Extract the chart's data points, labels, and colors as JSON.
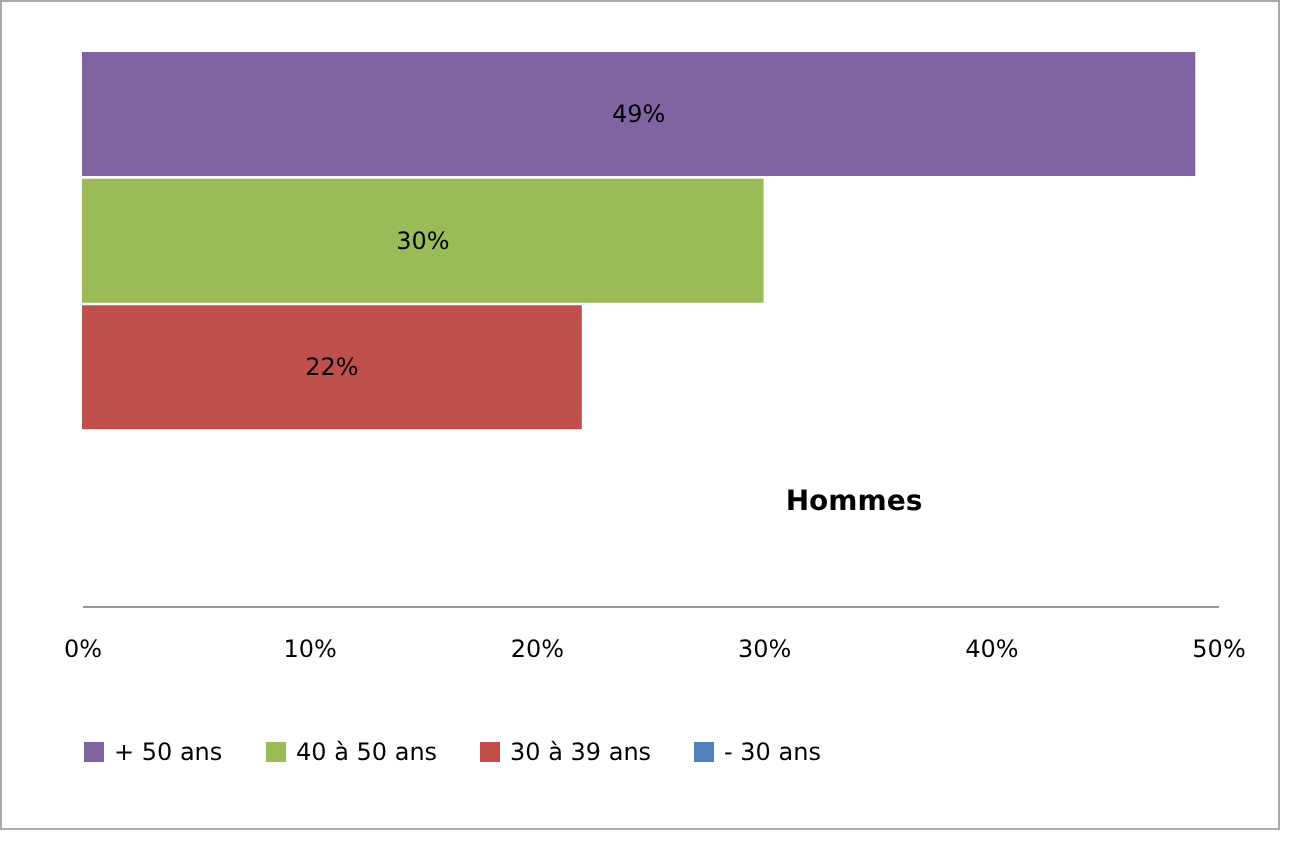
{
  "chart_data": {
    "type": "bar",
    "orientation": "horizontal",
    "categories": [
      null
    ],
    "annotations": [
      "Hommes"
    ],
    "series": [
      {
        "name": "+ 50 ans",
        "color": "#8064a2",
        "values": [
          49
        ],
        "value_labels": [
          "49%"
        ]
      },
      {
        "name": "40 à 50 ans",
        "color": "#9bbb59",
        "values": [
          30
        ],
        "value_labels": [
          "30%"
        ]
      },
      {
        "name": "30 à 39 ans",
        "color": "#c0504d",
        "values": [
          22
        ],
        "value_labels": [
          "22%"
        ]
      },
      {
        "name": "- 30 ans",
        "color": "#4f81bd",
        "values": [
          null
        ],
        "value_labels": [
          null
        ]
      }
    ],
    "xlim": [
      0,
      50
    ],
    "xticks": [
      {
        "value": 0,
        "label": "0%"
      },
      {
        "value": 10,
        "label": "10%"
      },
      {
        "value": 20,
        "label": "20%"
      },
      {
        "value": 30,
        "label": "30%"
      },
      {
        "value": 40,
        "label": "40%"
      },
      {
        "value": 50,
        "label": "50%"
      }
    ],
    "legend": "bottom"
  }
}
